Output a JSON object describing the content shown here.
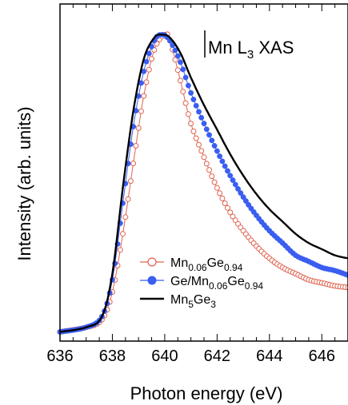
{
  "chart_data": {
    "type": "line",
    "title": "Mn L3 XAS",
    "title_parts": {
      "a": "Mn L",
      "sub": "3",
      "b": " XAS"
    },
    "xlabel": "Photon energy (eV)",
    "ylabel": "Intensity (arb. units)",
    "xlim": [
      636,
      647
    ],
    "ylim": [
      0,
      1.1
    ],
    "x_ticks": [
      636,
      638,
      640,
      642,
      644,
      646
    ],
    "x_tick_labels": [
      "636",
      "638",
      "640",
      "642",
      "644",
      "646"
    ],
    "y_ticks": [],
    "legend_position": "lower-right",
    "legend": [
      {
        "text_parts": [
          "Mn",
          "0.06",
          "Ge",
          "0.94"
        ],
        "marker": "open-circle-line",
        "color": "#e0634f"
      },
      {
        "text_parts": [
          "Ge/Mn",
          "0.06",
          "Ge",
          "0.94"
        ],
        "marker": "filled-circle-line",
        "color": "#3a5ef0"
      },
      {
        "text_parts": [
          "Mn",
          "5",
          "Ge",
          "3"
        ],
        "marker": "line",
        "color": "#000000"
      }
    ],
    "series": [
      {
        "name": "Mn0.06Ge0.94",
        "style": "open-circle",
        "color": "#e0634f",
        "x": [
          636.0,
          637.0,
          637.6,
          638.0,
          638.4,
          638.8,
          639.2,
          639.6,
          640.0,
          640.2,
          640.6,
          641.0,
          641.5,
          642.0,
          642.5,
          643.0,
          643.5,
          644.0,
          644.5,
          645.0,
          645.5,
          646.0,
          646.5,
          647.0
        ],
        "y": [
          0.03,
          0.045,
          0.07,
          0.16,
          0.35,
          0.58,
          0.8,
          0.95,
          1.0,
          0.98,
          0.85,
          0.71,
          0.6,
          0.5,
          0.42,
          0.36,
          0.31,
          0.27,
          0.24,
          0.22,
          0.2,
          0.19,
          0.18,
          0.175
        ]
      },
      {
        "name": "Ge/Mn0.06Ge0.94",
        "style": "filled-circle",
        "color": "#3a5ef0",
        "x": [
          636.0,
          637.0,
          637.6,
          638.0,
          638.4,
          638.8,
          639.2,
          639.6,
          639.9,
          640.2,
          640.6,
          641.0,
          641.5,
          642.0,
          642.5,
          643.0,
          643.5,
          644.0,
          644.5,
          645.0,
          645.5,
          646.0,
          646.5,
          647.0
        ],
        "y": [
          0.03,
          0.045,
          0.08,
          0.2,
          0.45,
          0.7,
          0.88,
          0.98,
          1.0,
          0.98,
          0.91,
          0.81,
          0.71,
          0.62,
          0.54,
          0.47,
          0.41,
          0.36,
          0.32,
          0.28,
          0.26,
          0.24,
          0.23,
          0.215
        ]
      },
      {
        "name": "Mn5Ge3",
        "style": "line",
        "color": "#000000",
        "x": [
          636.0,
          637.0,
          637.6,
          638.0,
          638.4,
          638.8,
          639.2,
          639.6,
          639.9,
          640.2,
          640.6,
          641.0,
          641.5,
          642.0,
          642.5,
          643.0,
          643.5,
          644.0,
          644.5,
          645.0,
          645.5,
          646.0,
          646.5,
          647.0
        ],
        "y": [
          0.03,
          0.045,
          0.08,
          0.22,
          0.5,
          0.75,
          0.92,
          0.99,
          1.0,
          0.99,
          0.94,
          0.86,
          0.77,
          0.69,
          0.61,
          0.54,
          0.48,
          0.43,
          0.39,
          0.35,
          0.32,
          0.3,
          0.28,
          0.27
        ]
      }
    ]
  }
}
